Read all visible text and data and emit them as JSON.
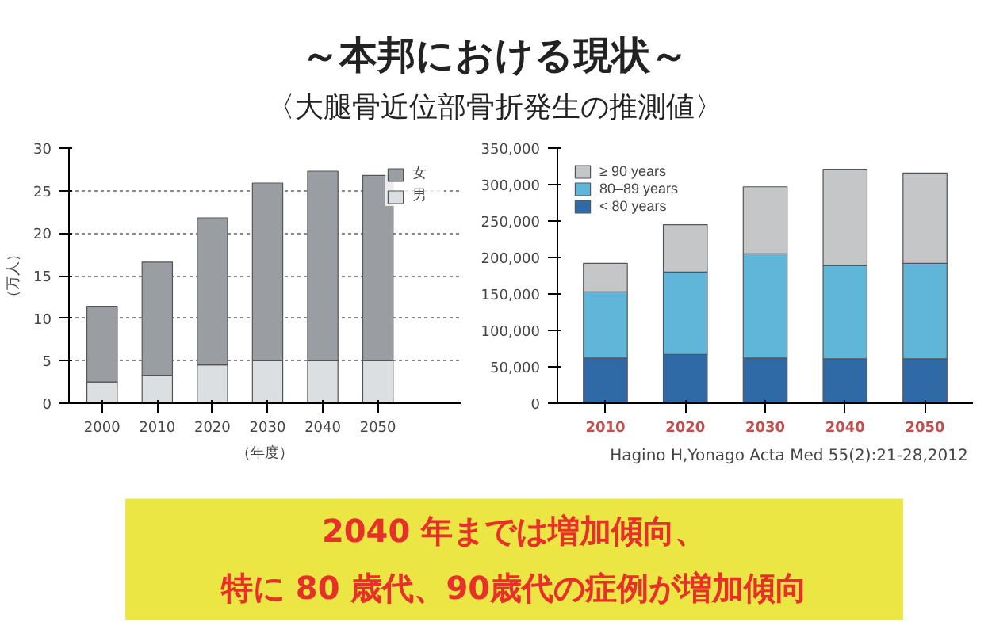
{
  "chart_data": [
    {
      "type": "bar",
      "title": "～本邦における現状～",
      "subtitle": "〈大腿骨近位部骨折発生の推測値〉",
      "stacked": true,
      "categories": [
        "2000",
        "2010",
        "2020",
        "2030",
        "2040",
        "2050"
      ],
      "xlabel": "（年度）",
      "ylabel": "（万人）",
      "series": [
        {
          "name": "男",
          "color": "#dcdfe2",
          "values": [
            2.5,
            3.3,
            4.5,
            5.0,
            5.0,
            5.0
          ]
        },
        {
          "name": "女",
          "color": "#9a9ea3",
          "values": [
            8.9,
            13.3,
            17.3,
            20.9,
            22.3,
            21.8
          ]
        }
      ],
      "ylim": [
        0,
        30
      ],
      "yticks": [
        0,
        5,
        10,
        15,
        20,
        25,
        30
      ],
      "grid": "y",
      "legend": "right",
      "annotations": [
        "2040 年までは増加傾向、",
        "特に 80 歳代、90歳代の症例が増加傾向"
      ]
    },
    {
      "type": "bar",
      "stacked": true,
      "categories": [
        "2010",
        "2020",
        "2030",
        "2040",
        "2050"
      ],
      "series": [
        {
          "name": "< 80 years",
          "color": "#2f6aa6",
          "values": [
            62000,
            67000,
            62000,
            61000,
            61000
          ]
        },
        {
          "name": "80–89 years",
          "color": "#5fb6d8",
          "values": [
            91000,
            113000,
            143000,
            128000,
            131000
          ]
        },
        {
          "name": "≥ 90 years",
          "color": "#c4c6c8",
          "values": [
            39000,
            65000,
            92000,
            132000,
            124000
          ]
        }
      ],
      "ylim": [
        0,
        350000
      ],
      "yticks": [
        {
          "value": 0,
          "label": "0"
        },
        {
          "value": 50000,
          "label": "50,000"
        },
        {
          "value": 100000,
          "label": "100,000"
        },
        {
          "value": 150000,
          "label": "150,000"
        },
        {
          "value": 200000,
          "label": "200,000"
        },
        {
          "value": 250000,
          "label": "250,000"
        },
        {
          "value": 300000,
          "label": "300,000"
        },
        {
          "value": 350000,
          "label": "350,000"
        }
      ],
      "grid": false,
      "legend": "top left",
      "annotations": [
        "Hagino H,Yonago  Acta Med 55(2):21-28,2012"
      ]
    }
  ]
}
